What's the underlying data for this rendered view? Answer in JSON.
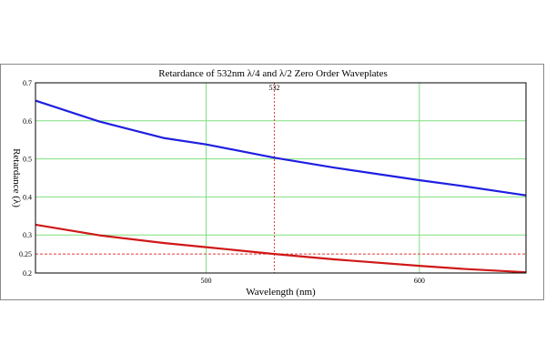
{
  "chart_data": {
    "type": "line",
    "title": "Retardance of 532nm  λ/4 and λ/2 Zero Order Waveplates",
    "xlabel": "Wavelength (nm)",
    "ylabel": "Retardance (λ)",
    "xlim": [
      420,
      650
    ],
    "ylim": [
      0.2,
      0.7
    ],
    "x_ticks": [
      500,
      600
    ],
    "y_ticks": [
      0.2,
      0.25,
      0.3,
      0.4,
      0.5,
      0.6,
      0.7
    ],
    "grid": true,
    "reference_x": 532,
    "reference_x_label": "532",
    "reference_y": 0.25,
    "series": [
      {
        "color": "#1f1fe0",
        "x": [
          420,
          450,
          480,
          500,
          532,
          560,
          600,
          620,
          650
        ],
        "y": [
          0.653,
          0.598,
          0.555,
          0.538,
          0.503,
          0.477,
          0.444,
          0.429,
          0.404
        ]
      },
      {
        "color": "#d01818",
        "x": [
          420,
          450,
          480,
          500,
          532,
          560,
          600,
          620,
          650
        ],
        "y": [
          0.327,
          0.299,
          0.279,
          0.268,
          0.25,
          0.236,
          0.219,
          0.211,
          0.202
        ]
      }
    ],
    "grid_color": "#7fe07f",
    "reference_color": "#e03a3a"
  }
}
